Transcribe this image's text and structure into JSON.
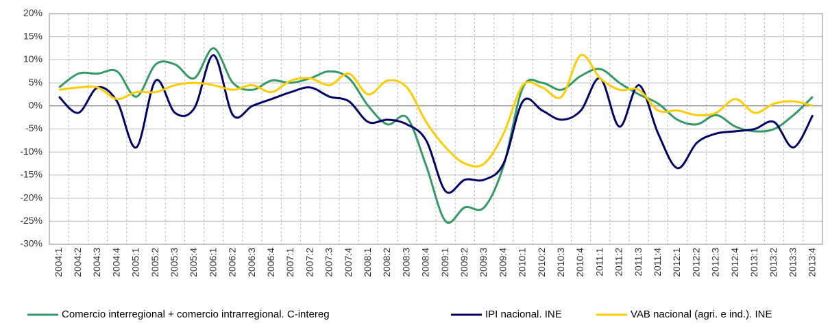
{
  "chart_data": {
    "type": "line",
    "categories": [
      "2004:1",
      "2004:2",
      "2004:3",
      "2004:4",
      "2005:1",
      "2005:2",
      "2005:3",
      "2005:4",
      "2006:1",
      "2006:2",
      "2006:3",
      "2006:4",
      "2007:1",
      "2007:2",
      "2007:3",
      "2007:4",
      "2008:1",
      "2008:2",
      "2008:3",
      "2008:4",
      "2009:1",
      "2009:2",
      "2009:3",
      "2009:4",
      "2010:1",
      "2010:2",
      "2010:3",
      "2010:4",
      "2011:1",
      "2011:2",
      "2011:3",
      "2011:4",
      "2012:1",
      "2012:2",
      "2012:3",
      "2012:4",
      "2013:1",
      "2013:2",
      "2013:3",
      "2013:4"
    ],
    "series": [
      {
        "name": "Comercio interregional + comercio intrarregional. C-intereg",
        "color": "#339966",
        "values": [
          4,
          7,
          7,
          7.5,
          2,
          9,
          9,
          6,
          12.5,
          5,
          3.5,
          5.5,
          5,
          6,
          7.5,
          6,
          0,
          -4,
          -2.5,
          -13,
          -25,
          -22,
          -22,
          -13,
          4,
          5,
          3.5,
          6.5,
          8,
          5,
          2.5,
          0.5,
          -3,
          -4,
          -2,
          -4.5,
          -5.5,
          -5,
          -2,
          2
        ]
      },
      {
        "name": "IPI nacional. INE",
        "color": "#000066",
        "values": [
          2,
          -1.5,
          4,
          1,
          -9,
          5.5,
          -1.5,
          -0.5,
          11,
          -2,
          0,
          1.5,
          3,
          4,
          2,
          1,
          -3.5,
          -3,
          -4,
          -7.5,
          -18.5,
          -16,
          -16,
          -12.5,
          1,
          -1,
          -3,
          -1,
          6,
          -4.5,
          4.5,
          -6,
          -13.5,
          -8,
          -6,
          -5.5,
          -5,
          -3.5,
          -9,
          -2
        ]
      },
      {
        "name": "VAB nacional (agri. e ind.). INE",
        "color": "#ffcc00",
        "values": [
          3.5,
          4,
          4,
          1.5,
          3,
          3,
          4.5,
          5,
          4.5,
          3.5,
          4.5,
          3,
          5.5,
          6,
          4.5,
          7,
          2.5,
          5.5,
          4,
          -3.5,
          -9,
          -12.5,
          -12.5,
          -6,
          4.5,
          4,
          2,
          11,
          6,
          3.5,
          3.5,
          -1,
          -1,
          -2,
          -1.5,
          1.5,
          -1.5,
          0.5,
          1,
          0
        ]
      }
    ],
    "ylim": [
      -30,
      20
    ],
    "yticks": [
      {
        "value": -30,
        "label": "-30%"
      },
      {
        "value": -25,
        "label": "-25%"
      },
      {
        "value": -20,
        "label": "-20%"
      },
      {
        "value": -15,
        "label": "-15%"
      },
      {
        "value": -10,
        "label": "-10%"
      },
      {
        "value": -5,
        "label": "-5%"
      },
      {
        "value": 0,
        "label": "0%"
      },
      {
        "value": 5,
        "label": "5%"
      },
      {
        "value": 10,
        "label": "10%"
      },
      {
        "value": 15,
        "label": "15%"
      },
      {
        "value": 20,
        "label": "20%"
      }
    ],
    "grid": true,
    "legend": "bottom"
  }
}
